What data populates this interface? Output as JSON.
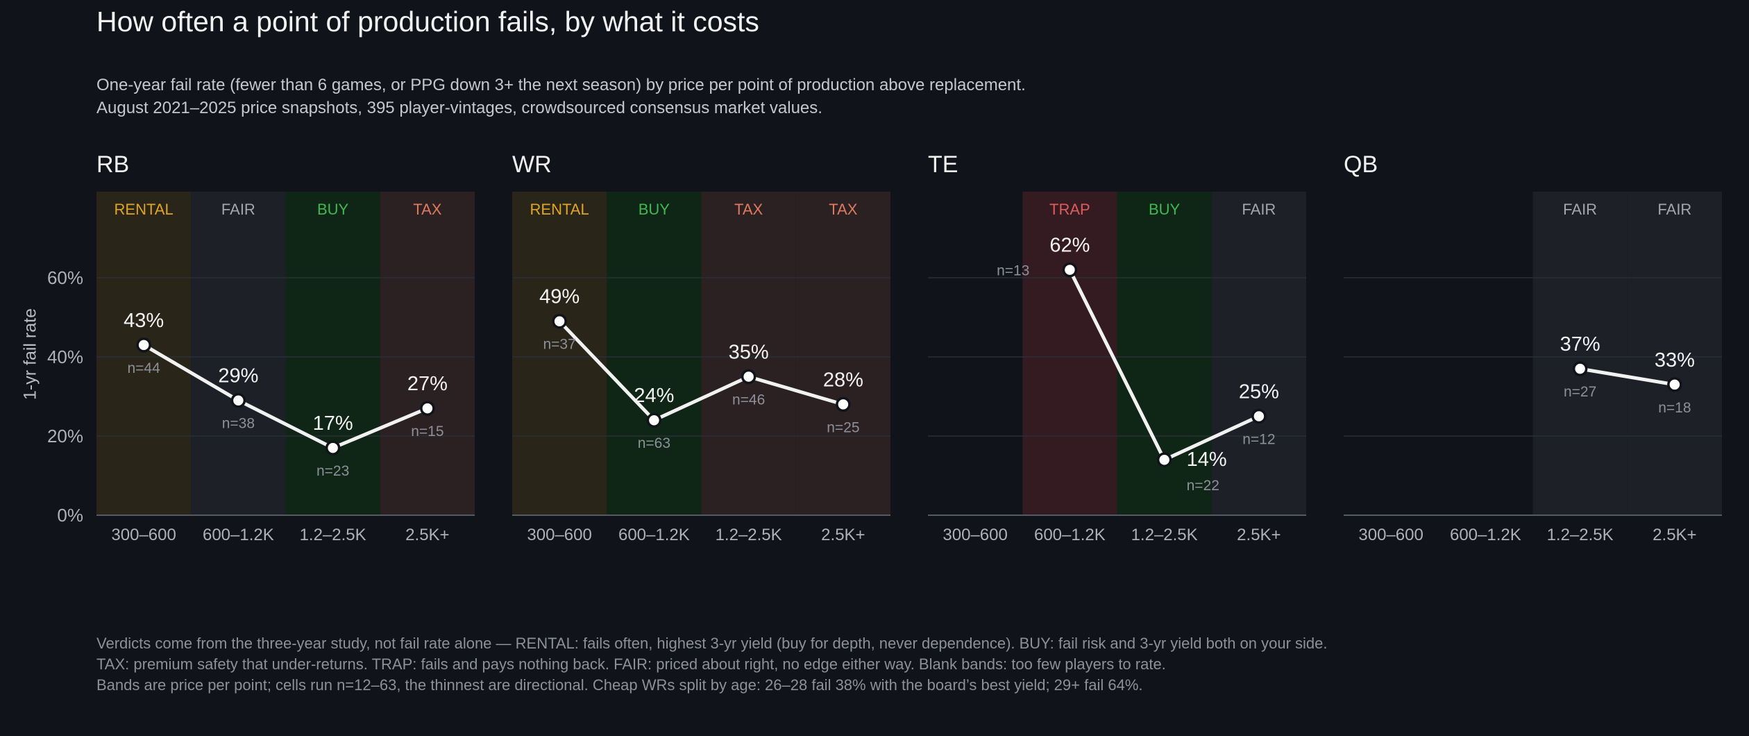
{
  "title": "How often a point of production fails, by what it costs",
  "subtitle_lines": [
    "One-year fail rate (fewer than 6 games, or PPG down 3+ the next season) by price per point of production above replacement.",
    "August 2021–2025 price snapshots, 395 player-vintages, crowdsourced consensus market values."
  ],
  "footer_lines": [
    "Verdicts come from the three-year study, not fail rate alone — RENTAL: fails often, highest 3-yr yield (buy for depth, never dependence).  BUY: fail risk and 3-yr yield both on your side.",
    "TAX: premium safety that under-returns.  TRAP: fails and pays nothing back.  FAIR: priced about right, no edge either way.  Blank bands: too few players to rate.",
    "Bands are price per point; cells run n=12–63, the thinnest are directional.  Cheap WRs split by age: 26–28 fail 38% with the board’s best yield; 29+ fail 64%."
  ],
  "verdict_colors": {
    "RENTAL": {
      "text": "#e0a526",
      "band": "#2a2519"
    },
    "FAIR": {
      "text": "#a3a6ad",
      "band": "#1d2027"
    },
    "BUY": {
      "text": "#3fb950",
      "band": "#0f2617"
    },
    "TAX": {
      "text": "#e07a5f",
      "band": "#2b2122"
    },
    "TRAP": {
      "text": "#e05c5c",
      "band": "#331b21"
    }
  },
  "chart_data": {
    "type": "line",
    "ylabel": "1-yr fail rate",
    "ylim": [
      0,
      0.8
    ],
    "yticks": [
      0,
      0.2,
      0.4,
      0.6
    ],
    "ytick_labels": [
      "0%",
      "20%",
      "40%",
      "60%"
    ],
    "grid": true,
    "categories": [
      "300–600",
      "600–1.2K",
      "1.2–2.5K",
      "2.5K+"
    ],
    "panels": [
      {
        "name": "RB",
        "verdicts": [
          "RENTAL",
          "FAIR",
          "BUY",
          "TAX"
        ],
        "values": [
          0.43,
          0.29,
          0.17,
          0.27
        ],
        "value_labels": [
          "43%",
          "29%",
          "17%",
          "27%"
        ],
        "n_labels": [
          "n=44",
          "n=38",
          "n=23",
          "n=15"
        ],
        "label_pos": [
          "above",
          "above",
          "above",
          "above"
        ]
      },
      {
        "name": "WR",
        "verdicts": [
          "RENTAL",
          "BUY",
          "TAX",
          "TAX"
        ],
        "values": [
          0.49,
          0.24,
          0.35,
          0.28
        ],
        "value_labels": [
          "49%",
          "24%",
          "35%",
          "28%"
        ],
        "n_labels": [
          "n=37",
          "n=63",
          "n=46",
          "n=25"
        ],
        "label_pos": [
          "above",
          "above",
          "above",
          "above"
        ]
      },
      {
        "name": "TE",
        "verdicts": [
          null,
          "TRAP",
          "BUY",
          "FAIR"
        ],
        "values": [
          null,
          0.62,
          0.14,
          0.25
        ],
        "value_labels": [
          "",
          "62%",
          "14%",
          "25%"
        ],
        "n_labels": [
          "",
          "n=13",
          "n=22",
          "n=12"
        ],
        "label_pos": [
          null,
          "above",
          "right",
          "above"
        ]
      },
      {
        "name": "QB",
        "verdicts": [
          null,
          null,
          "FAIR",
          "FAIR"
        ],
        "values": [
          null,
          null,
          0.37,
          0.33
        ],
        "value_labels": [
          "",
          "",
          "37%",
          "33%"
        ],
        "n_labels": [
          "",
          "",
          "n=27",
          "n=18"
        ],
        "label_pos": [
          null,
          null,
          "above",
          "above"
        ]
      }
    ]
  }
}
